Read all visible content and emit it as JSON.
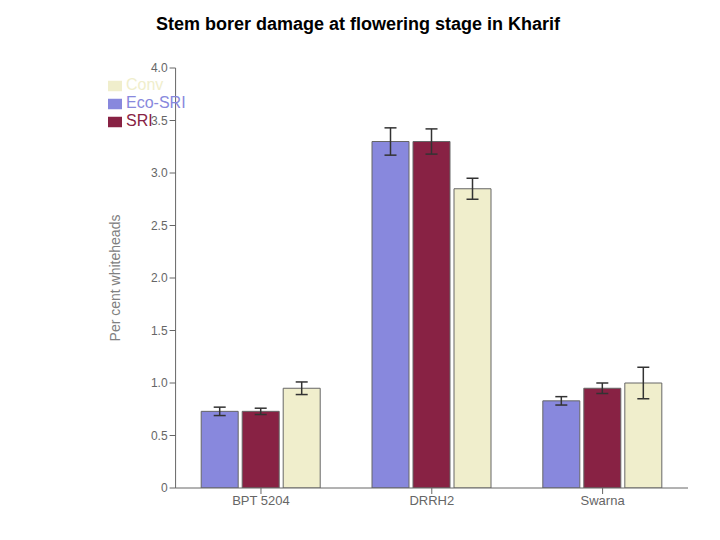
{
  "chart_data": {
    "type": "bar",
    "title": "Stem borer damage at flowering stage in Kharif",
    "ylabel": "Per cent whiteheads",
    "categories": [
      "BPT 5204",
      "DRRH2",
      "Swarna"
    ],
    "series": [
      {
        "name": "Eco-SRI",
        "color": "#8888dd",
        "values": [
          0.73,
          3.3,
          0.83
        ],
        "errors": [
          0.04,
          0.13,
          0.04
        ]
      },
      {
        "name": "SRI",
        "color": "#882244",
        "values": [
          0.73,
          3.3,
          0.95
        ],
        "errors": [
          0.03,
          0.12,
          0.05
        ]
      },
      {
        "name": "Conv",
        "color": "#f0eecc",
        "values": [
          0.95,
          2.85,
          1.0
        ],
        "errors": [
          0.06,
          0.1,
          0.15
        ]
      }
    ],
    "ylim": [
      0,
      4.0
    ],
    "yticks": [
      0,
      0.5,
      {
        "value": 1,
        "label": "1.0"
      },
      1.5,
      {
        "value": 2,
        "label": "2.0"
      },
      2.5,
      {
        "value": 3,
        "label": "3.0"
      },
      3.5,
      {
        "value": 4,
        "label": "4.0"
      }
    ],
    "grid": false,
    "legend": "upper left"
  }
}
